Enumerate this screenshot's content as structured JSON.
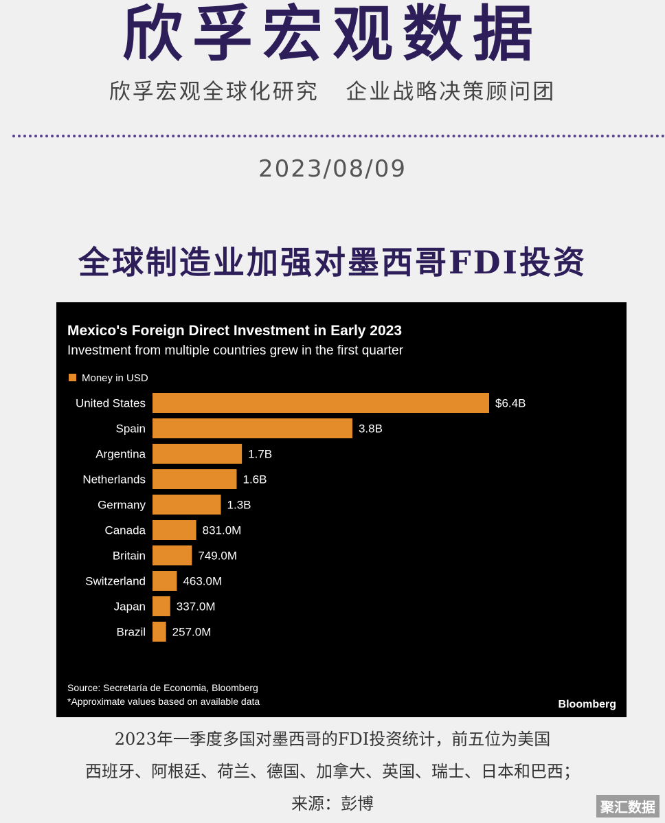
{
  "header": {
    "brand": "欣孚宏观数据",
    "subtitle": "欣孚宏观全球化研究   企业战略决策顾问团",
    "date": "2023/08/09"
  },
  "headline": "全球制造业加强对墨西哥FDI投资",
  "chart_data": {
    "type": "bar",
    "orientation": "horizontal",
    "title": "Mexico's Foreign Direct Investment in Early 2023",
    "subtitle": "Investment from multiple countries grew in the first quarter",
    "legend": "Money in USD",
    "legend_placement": "top-left",
    "bar_color": "#e48c2a",
    "categories": [
      "United States",
      "Spain",
      "Argentina",
      "Netherlands",
      "Germany",
      "Canada",
      "Britain",
      "Switzerland",
      "Japan",
      "Brazil"
    ],
    "values": [
      6.4,
      3.8,
      1.7,
      1.6,
      1.3,
      0.831,
      0.749,
      0.463,
      0.337,
      0.257
    ],
    "value_unit": "billion USD",
    "data_labels": [
      "$6.4B",
      "3.8B",
      "1.7B",
      "1.6B",
      "1.3B",
      "831.0M",
      "749.0M",
      "463.0M",
      "337.0M",
      "257.0M"
    ],
    "source": "Source: Secretaría de Economia, Bloomberg",
    "footnote": "*Approximate values based on available data",
    "brand": "Bloomberg",
    "grid": false
  },
  "caption": {
    "line1": "2023年一季度多国对墨西哥的FDI投资统计，前五位为美国",
    "line2": "西班牙、阿根廷、荷兰、德国、加拿大、英国、瑞士、日本和巴西；",
    "line3": "来源：彭博"
  },
  "watermark": "聚汇数据"
}
